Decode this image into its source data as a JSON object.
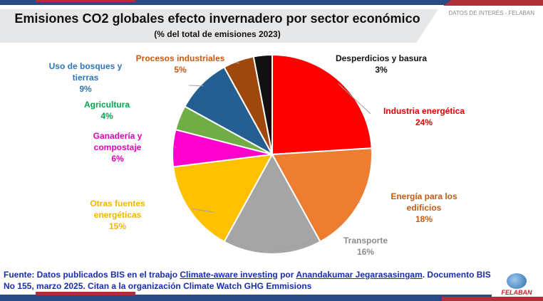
{
  "header": {
    "title": "Emisiones CO2 globales efecto invernadero por sector económico",
    "subtitle": "(% del total de emisiones 2023)",
    "tag": "DATOS DE INTERÉS - FELABAN"
  },
  "chart_data": {
    "type": "pie",
    "title": "Emisiones CO2 globales efecto invernadero por sector económico",
    "subtitle": "(% del total de emisiones 2023)",
    "slices": [
      {
        "name": "Industria energética",
        "value": 24,
        "label": "24%",
        "color": "#ff0000",
        "text_color": "#e00000"
      },
      {
        "name": "Energía para los edificios",
        "value": 18,
        "label": "18%",
        "color": "#ed7d31",
        "text_color": "#c55a11"
      },
      {
        "name": "Transporte",
        "value": 16,
        "label": "16%",
        "color": "#a5a5a5",
        "text_color": "#8c8c8c"
      },
      {
        "name": "Otras fuentes energéticas",
        "value": 15,
        "label": "15%",
        "color": "#ffc000",
        "text_color": "#f0b400"
      },
      {
        "name": "Ganadería y compostaje",
        "value": 6,
        "label": "6%",
        "color": "#ff00cc",
        "text_color": "#e600b8"
      },
      {
        "name": "Agricultura",
        "value": 4,
        "label": "4%",
        "color": "#70ad47",
        "text_color": "#00a550"
      },
      {
        "name": "Uso de bosques y tierras",
        "value": 9,
        "label": "9%",
        "color": "#255e91",
        "text_color": "#2e75b6"
      },
      {
        "name": "Procesos industriales",
        "value": 5,
        "label": "5%",
        "color": "#9e480e",
        "text_color": "#c55a11"
      },
      {
        "name": "Desperdicios y basura",
        "value": 3,
        "label": "3%",
        "color": "#111111",
        "text_color": "#111111"
      }
    ]
  },
  "source": {
    "prefix": "Fuente: Datos publicados BIS en el trabajo ",
    "link1": "Climate-aware investing",
    "mid": " por ",
    "link2": "Anandakumar Jegarasasingam",
    "suffix": ". Documento BIS No 155, marzo 2025. Citan a la organización Climate Watch GHG Emmisions"
  },
  "logo": {
    "text": "FELABAN"
  }
}
